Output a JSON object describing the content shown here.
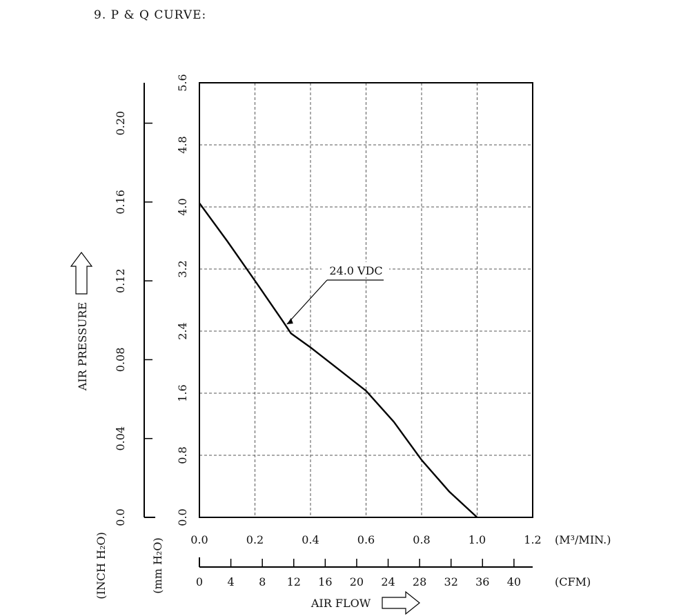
{
  "heading": "9. P & Q CURVE:",
  "chart_data": {
    "type": "line",
    "x_axis": {
      "label": "AIR FLOW",
      "unit_primary": "(M³/MIN.)",
      "unit_secondary": "(CFM)",
      "range": [
        0,
        1.2
      ],
      "ticks": [
        0.0,
        0.2,
        0.4,
        0.6,
        0.8,
        1.0,
        1.2
      ],
      "tick_labels": [
        "0.0",
        "0.2",
        "0.4",
        "0.6",
        "0.8",
        "1.0",
        "1.2"
      ],
      "cfm_range": [
        0,
        42.38
      ],
      "cfm_ticks": [
        0,
        4,
        8,
        12,
        16,
        20,
        24,
        28,
        32,
        36,
        40
      ],
      "cfm_tick_labels": [
        "0",
        "4",
        "8",
        "12",
        "16",
        "20",
        "24",
        "28",
        "32",
        "36",
        "40"
      ]
    },
    "y_axis": {
      "label": "AIR PRESSURE",
      "unit_mm": "(mm H₂O)",
      "unit_inch": "(INCH H₂O)",
      "range": [
        0,
        5.6
      ],
      "ticks": [
        0.0,
        0.8,
        1.6,
        2.4,
        3.2,
        4.0,
        4.8,
        5.6
      ],
      "tick_labels": [
        "0.0",
        "0.8",
        "1.6",
        "2.4",
        "3.2",
        "4.0",
        "4.8",
        "5.6"
      ],
      "inch_range": [
        0,
        0.2205
      ],
      "inch_ticks": [
        0.0,
        0.04,
        0.08,
        0.12,
        0.16,
        0.2
      ],
      "inch_tick_labels": [
        "0.0",
        "0.04",
        "0.08",
        "0.12",
        "0.16",
        "0.20"
      ]
    },
    "grid": true,
    "series": [
      {
        "name": "24.0 VDC",
        "color": "#000000",
        "points": [
          [
            0.0,
            4.05
          ],
          [
            0.1,
            3.56
          ],
          [
            0.2,
            3.05
          ],
          [
            0.3,
            2.53
          ],
          [
            0.33,
            2.37
          ],
          [
            0.4,
            2.19
          ],
          [
            0.5,
            1.91
          ],
          [
            0.6,
            1.63
          ],
          [
            0.7,
            1.23
          ],
          [
            0.8,
            0.74
          ],
          [
            0.9,
            0.33
          ],
          [
            1.0,
            0.0
          ]
        ],
        "label_at": [
          0.33,
          2.4
        ]
      }
    ]
  }
}
